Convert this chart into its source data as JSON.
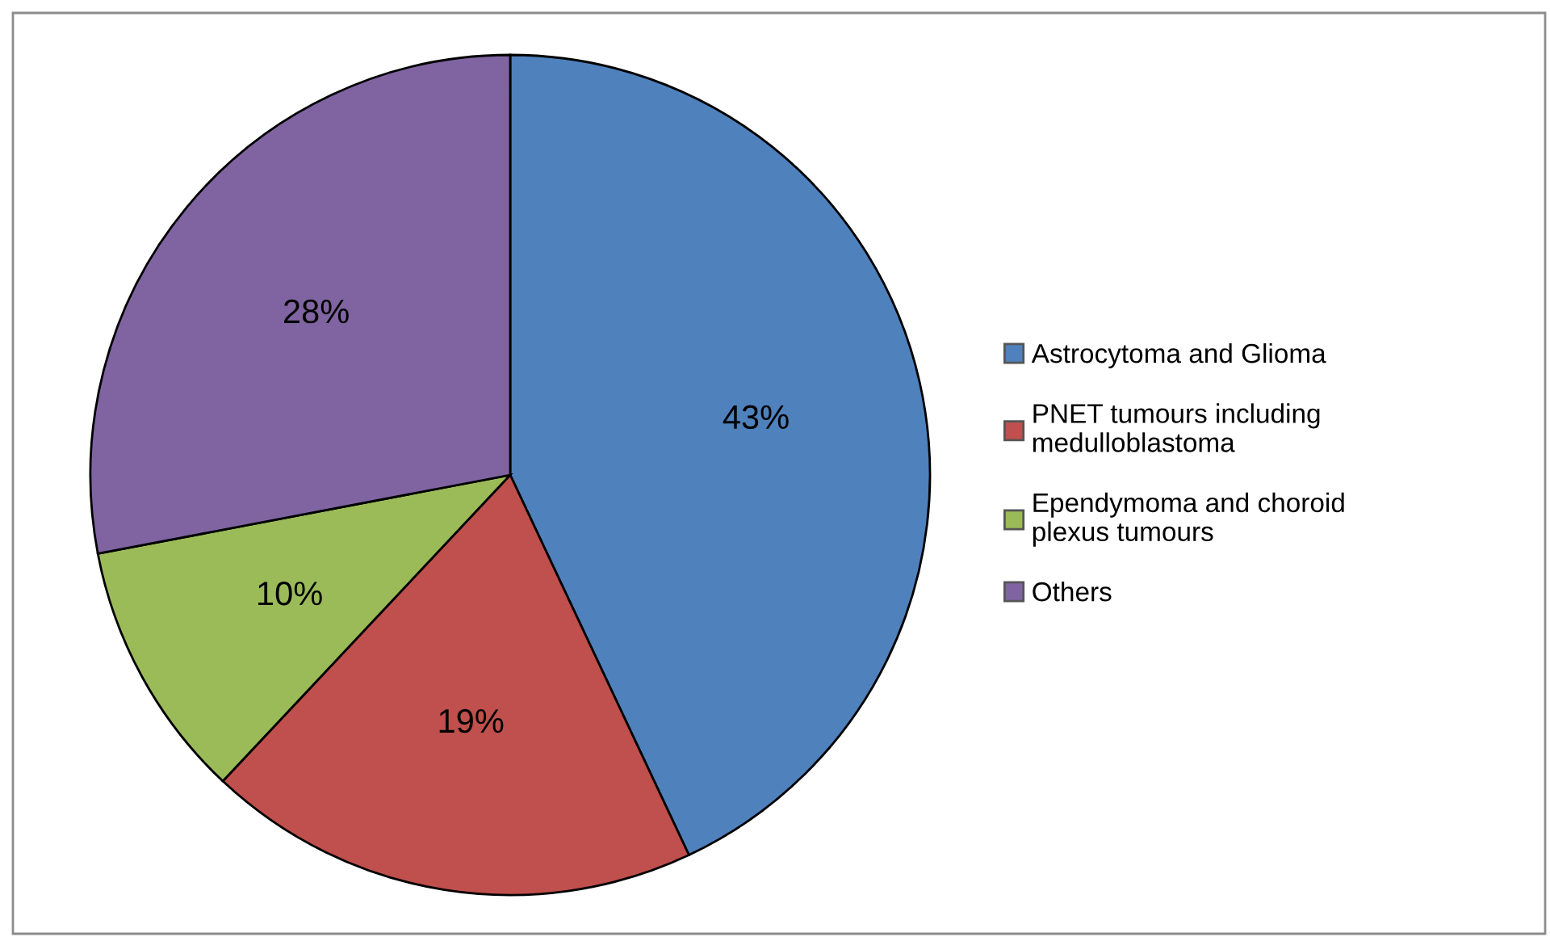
{
  "chart_data": {
    "type": "pie",
    "categories": [
      "Astrocytoma and Glioma",
      "PNET tumours including\nmedulloblastoma",
      "Ependymoma and choroid\nplexus tumours",
      "Others"
    ],
    "values": [
      43,
      19,
      10,
      28
    ],
    "colors": [
      "#4f81bd",
      "#c0504d",
      "#9bbb59",
      "#8064a2"
    ],
    "value_labels": [
      "43%",
      "19%",
      "10%",
      "28%"
    ],
    "legend": "right"
  }
}
